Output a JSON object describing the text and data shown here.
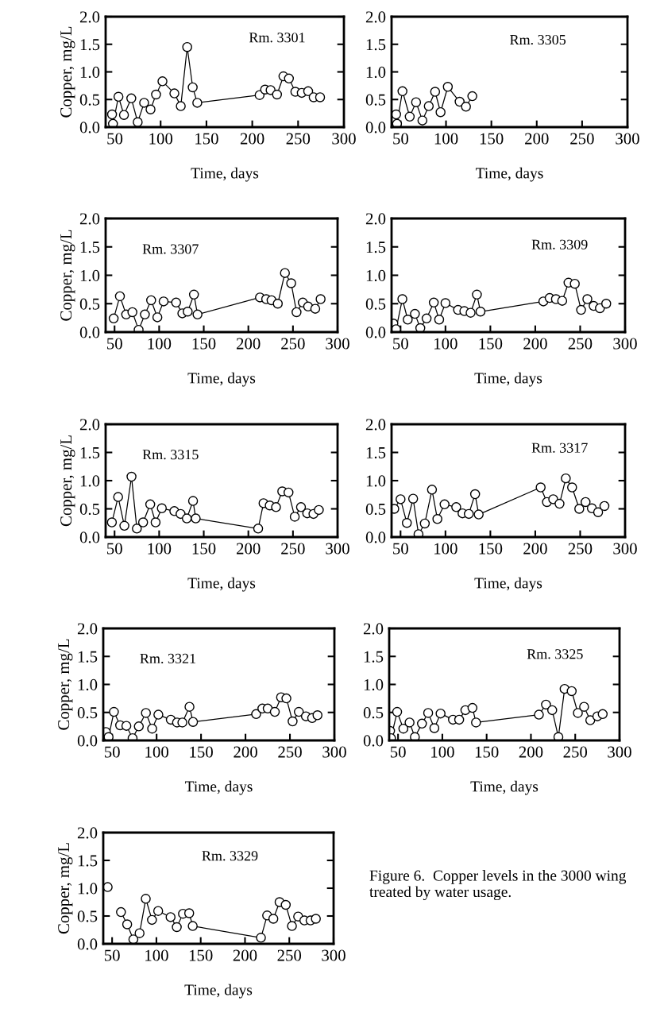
{
  "chart_data": [
    {
      "type": "line",
      "title": "Rm. 3301",
      "xlabel": "Time, days",
      "ylabel": "Copper, mg/L",
      "marker": "circle",
      "xlim": [
        40,
        300
      ],
      "xticks": [
        50,
        100,
        150,
        200,
        250,
        300
      ],
      "ylim": [
        0,
        2
      ],
      "yticks": [
        {
          "value": 0,
          "label": "0.0"
        },
        {
          "value": 0.5,
          "label": "0.5"
        },
        {
          "value": 1,
          "label": "1.0"
        },
        {
          "value": 1.5,
          "label": "1.5"
        },
        {
          "value": 2,
          "label": "2.0"
        }
      ],
      "x": [
        47,
        48,
        54,
        60,
        68,
        75,
        82,
        89,
        95,
        102,
        115,
        122,
        129,
        135,
        140,
        208,
        214,
        220,
        227,
        234,
        240,
        247,
        254,
        261,
        267,
        274
      ],
      "series": [
        {
          "color": "#000000",
          "values": [
            0.23,
            0.06,
            0.55,
            0.22,
            0.52,
            0.09,
            0.44,
            0.32,
            0.59,
            0.83,
            0.61,
            0.38,
            1.45,
            0.72,
            0.44,
            0.58,
            0.68,
            0.67,
            0.59,
            0.92,
            0.88,
            0.64,
            0.62,
            0.65,
            0.54,
            0.54
          ]
        }
      ]
    },
    {
      "type": "line",
      "title": "Rm. 3305",
      "xlabel": "Time, days",
      "marker": "circle",
      "xlim": [
        40,
        300
      ],
      "xticks": [
        50,
        100,
        150,
        200,
        250,
        300
      ],
      "ylim": [
        0,
        2
      ],
      "yticks": [
        {
          "value": 0,
          "label": "0.0"
        },
        {
          "value": 0.5,
          "label": "0.5"
        },
        {
          "value": 1,
          "label": "1.0"
        },
        {
          "value": 1.5,
          "label": "1.5"
        },
        {
          "value": 2,
          "label": "2.0"
        }
      ],
      "x": [
        45,
        46,
        52,
        60,
        67,
        74,
        81,
        88,
        94,
        102,
        115,
        122,
        129
      ],
      "series": [
        {
          "color": "#000000",
          "values": [
            0.23,
            0.06,
            0.65,
            0.19,
            0.45,
            0.12,
            0.38,
            0.64,
            0.27,
            0.73,
            0.46,
            0.37,
            0.56
          ]
        }
      ]
    },
    {
      "type": "line",
      "title": "Rm. 3307",
      "xlabel": "Time, days",
      "ylabel": "Copper, mg/L",
      "marker": "circle",
      "xlim": [
        40,
        300
      ],
      "xticks": [
        50,
        100,
        150,
        200,
        250,
        300
      ],
      "ylim": [
        0,
        2
      ],
      "yticks": [
        {
          "value": 0,
          "label": "0.0"
        },
        {
          "value": 0.5,
          "label": "0.5"
        },
        {
          "value": 1,
          "label": "1.0"
        },
        {
          "value": 1.5,
          "label": "1.5"
        },
        {
          "value": 2,
          "label": "2.0"
        }
      ],
      "x": [
        49,
        56,
        63,
        70,
        77,
        84,
        91,
        98,
        105,
        119,
        126,
        132,
        139,
        143,
        213,
        220,
        226,
        233,
        241,
        248,
        254,
        261,
        267,
        275,
        281
      ],
      "series": [
        {
          "color": "#000000",
          "values": [
            0.24,
            0.63,
            0.31,
            0.35,
            0.04,
            0.31,
            0.56,
            0.26,
            0.54,
            0.52,
            0.33,
            0.36,
            0.66,
            0.31,
            0.61,
            0.58,
            0.56,
            0.5,
            1.04,
            0.86,
            0.35,
            0.52,
            0.45,
            0.41,
            0.58
          ]
        }
      ]
    },
    {
      "type": "line",
      "title": "Rm. 3309",
      "xlabel": "Time, days",
      "marker": "circle",
      "xlim": [
        40,
        300
      ],
      "xticks": [
        50,
        100,
        150,
        200,
        250,
        300
      ],
      "ylim": [
        0,
        2
      ],
      "yticks": [
        {
          "value": 0,
          "label": "0.0"
        },
        {
          "value": 0.5,
          "label": "0.5"
        },
        {
          "value": 1,
          "label": "1.0"
        },
        {
          "value": 1.5,
          "label": "1.5"
        },
        {
          "value": 2,
          "label": "2.0"
        }
      ],
      "x": [
        42,
        45,
        52,
        58,
        66,
        72,
        79,
        87,
        93,
        100,
        114,
        121,
        128,
        135,
        139,
        209,
        216,
        223,
        230,
        237,
        244,
        251,
        258,
        265,
        272,
        279
      ],
      "series": [
        {
          "color": "#000000",
          "values": [
            0.15,
            0.05,
            0.58,
            0.22,
            0.32,
            0.07,
            0.24,
            0.52,
            0.22,
            0.51,
            0.39,
            0.37,
            0.34,
            0.66,
            0.36,
            0.54,
            0.6,
            0.58,
            0.55,
            0.87,
            0.85,
            0.39,
            0.58,
            0.46,
            0.42,
            0.5
          ]
        }
      ]
    },
    {
      "type": "line",
      "title": "Rm. 3315",
      "xlabel": "Time, days",
      "ylabel": "Copper, mg/L",
      "marker": "circle",
      "xlim": [
        40,
        300
      ],
      "xticks": [
        50,
        100,
        150,
        200,
        250,
        300
      ],
      "ylim": [
        0,
        2
      ],
      "yticks": [
        {
          "value": 0,
          "label": "0.0"
        },
        {
          "value": 0.5,
          "label": "0.5"
        },
        {
          "value": 1,
          "label": "1.0"
        },
        {
          "value": 1.5,
          "label": "1.5"
        },
        {
          "value": 2,
          "label": "2.0"
        }
      ],
      "x": [
        47,
        54,
        61,
        69,
        75,
        82,
        90,
        96,
        103,
        117,
        124,
        131,
        138,
        141,
        211,
        217,
        224,
        231,
        238,
        245,
        252,
        259,
        266,
        273,
        279
      ],
      "series": [
        {
          "color": "#000000",
          "values": [
            0.26,
            0.71,
            0.2,
            1.07,
            0.15,
            0.26,
            0.58,
            0.26,
            0.51,
            0.46,
            0.41,
            0.33,
            0.64,
            0.33,
            0.15,
            0.6,
            0.56,
            0.53,
            0.81,
            0.79,
            0.36,
            0.53,
            0.42,
            0.41,
            0.48
          ]
        }
      ]
    },
    {
      "type": "line",
      "title": "Rm. 3317",
      "xlabel": "Time, days",
      "marker": "circle",
      "xlim": [
        40,
        300
      ],
      "xticks": [
        50,
        100,
        150,
        200,
        250,
        300
      ],
      "ylim": [
        0,
        2
      ],
      "yticks": [
        {
          "value": 0,
          "label": "0.0"
        },
        {
          "value": 0.5,
          "label": "0.5"
        },
        {
          "value": 1,
          "label": "1.0"
        },
        {
          "value": 1.5,
          "label": "1.5"
        },
        {
          "value": 2,
          "label": "2.0"
        }
      ],
      "x": [
        43,
        50,
        57,
        64,
        70,
        77,
        85,
        91,
        99,
        112,
        119,
        126,
        133,
        137,
        206,
        213,
        220,
        227,
        234,
        241,
        249,
        256,
        263,
        270,
        277
      ],
      "series": [
        {
          "color": "#000000",
          "values": [
            0.5,
            0.67,
            0.25,
            0.68,
            0.05,
            0.24,
            0.84,
            0.32,
            0.58,
            0.53,
            0.42,
            0.41,
            0.76,
            0.4,
            0.88,
            0.62,
            0.67,
            0.59,
            1.04,
            0.88,
            0.5,
            0.62,
            0.51,
            0.44,
            0.55
          ]
        }
      ]
    },
    {
      "type": "line",
      "title": "Rm. 3321",
      "xlabel": "Time, days",
      "ylabel": "Copper, mg/L",
      "marker": "circle",
      "xlim": [
        40,
        300
      ],
      "xticks": [
        50,
        100,
        150,
        200,
        250,
        300
      ],
      "ylim": [
        0,
        2
      ],
      "yticks": [
        {
          "value": 0,
          "label": "0.0"
        },
        {
          "value": 0.5,
          "label": "0.5"
        },
        {
          "value": 1,
          "label": "1.0"
        },
        {
          "value": 1.5,
          "label": "1.5"
        },
        {
          "value": 2,
          "label": "2.0"
        }
      ],
      "x": [
        43,
        46,
        52,
        59,
        66,
        73,
        80,
        88,
        95,
        102,
        116,
        123,
        129,
        137,
        141,
        212,
        219,
        225,
        233,
        240,
        246,
        253,
        260,
        268,
        275,
        281
      ],
      "series": [
        {
          "color": "#000000",
          "values": [
            0.15,
            0.06,
            0.51,
            0.27,
            0.26,
            0.04,
            0.25,
            0.49,
            0.21,
            0.46,
            0.37,
            0.32,
            0.32,
            0.6,
            0.33,
            0.47,
            0.57,
            0.57,
            0.51,
            0.77,
            0.75,
            0.34,
            0.51,
            0.43,
            0.4,
            0.45
          ]
        }
      ]
    },
    {
      "type": "line",
      "title": "Rm. 3325",
      "xlabel": "Time, days",
      "marker": "circle",
      "xlim": [
        40,
        300
      ],
      "xticks": [
        50,
        100,
        150,
        200,
        250,
        300
      ],
      "ylim": [
        0,
        2
      ],
      "yticks": [
        {
          "value": 0,
          "label": "0.0"
        },
        {
          "value": 0.5,
          "label": "0.5"
        },
        {
          "value": 1,
          "label": "1.0"
        },
        {
          "value": 1.5,
          "label": "1.5"
        },
        {
          "value": 2,
          "label": "2.0"
        }
      ],
      "x": [
        41,
        42,
        49,
        56,
        63,
        69,
        77,
        84,
        91,
        98,
        112,
        119,
        126,
        134,
        138,
        209,
        217,
        224,
        231,
        238,
        246,
        253,
        260,
        267,
        275,
        281
      ],
      "series": [
        {
          "color": "#000000",
          "values": [
            0.17,
            0.04,
            0.51,
            0.21,
            0.32,
            0.06,
            0.3,
            0.49,
            0.22,
            0.48,
            0.37,
            0.37,
            0.54,
            0.58,
            0.32,
            0.46,
            0.64,
            0.54,
            0.06,
            0.92,
            0.88,
            0.49,
            0.6,
            0.36,
            0.43,
            0.47
          ]
        }
      ]
    },
    {
      "type": "line",
      "title": "Rm. 3329",
      "xlabel": "Time, days",
      "ylabel": "Copper, mg/L",
      "marker": "circle",
      "xlim": [
        40,
        300
      ],
      "xticks": [
        50,
        100,
        150,
        200,
        250,
        300
      ],
      "ylim": [
        0,
        2
      ],
      "yticks": [
        {
          "value": 0,
          "label": "0.0"
        },
        {
          "value": 0.5,
          "label": "0.5"
        },
        {
          "value": 1,
          "label": "1.0"
        },
        {
          "value": 1.5,
          "label": "1.5"
        },
        {
          "value": 2,
          "label": "2.0"
        }
      ],
      "annotations": [
        "Figure 6.  Copper levels in the 3000 wing treated by water usage."
      ],
      "x": [
        45,
        50,
        60,
        67,
        74,
        81,
        88,
        95,
        102,
        116,
        123,
        130,
        137,
        141,
        218,
        225,
        232,
        239,
        246,
        253,
        260,
        267,
        274,
        280
      ],
      "series": [
        {
          "color": "#000000",
          "values": [
            1.02,
            null,
            0.57,
            0.35,
            0.08,
            0.19,
            0.81,
            0.43,
            0.59,
            0.48,
            0.3,
            0.54,
            0.55,
            0.32,
            0.11,
            0.51,
            0.45,
            0.75,
            0.7,
            0.32,
            0.49,
            0.42,
            0.42,
            0.45
          ]
        }
      ]
    }
  ]
}
